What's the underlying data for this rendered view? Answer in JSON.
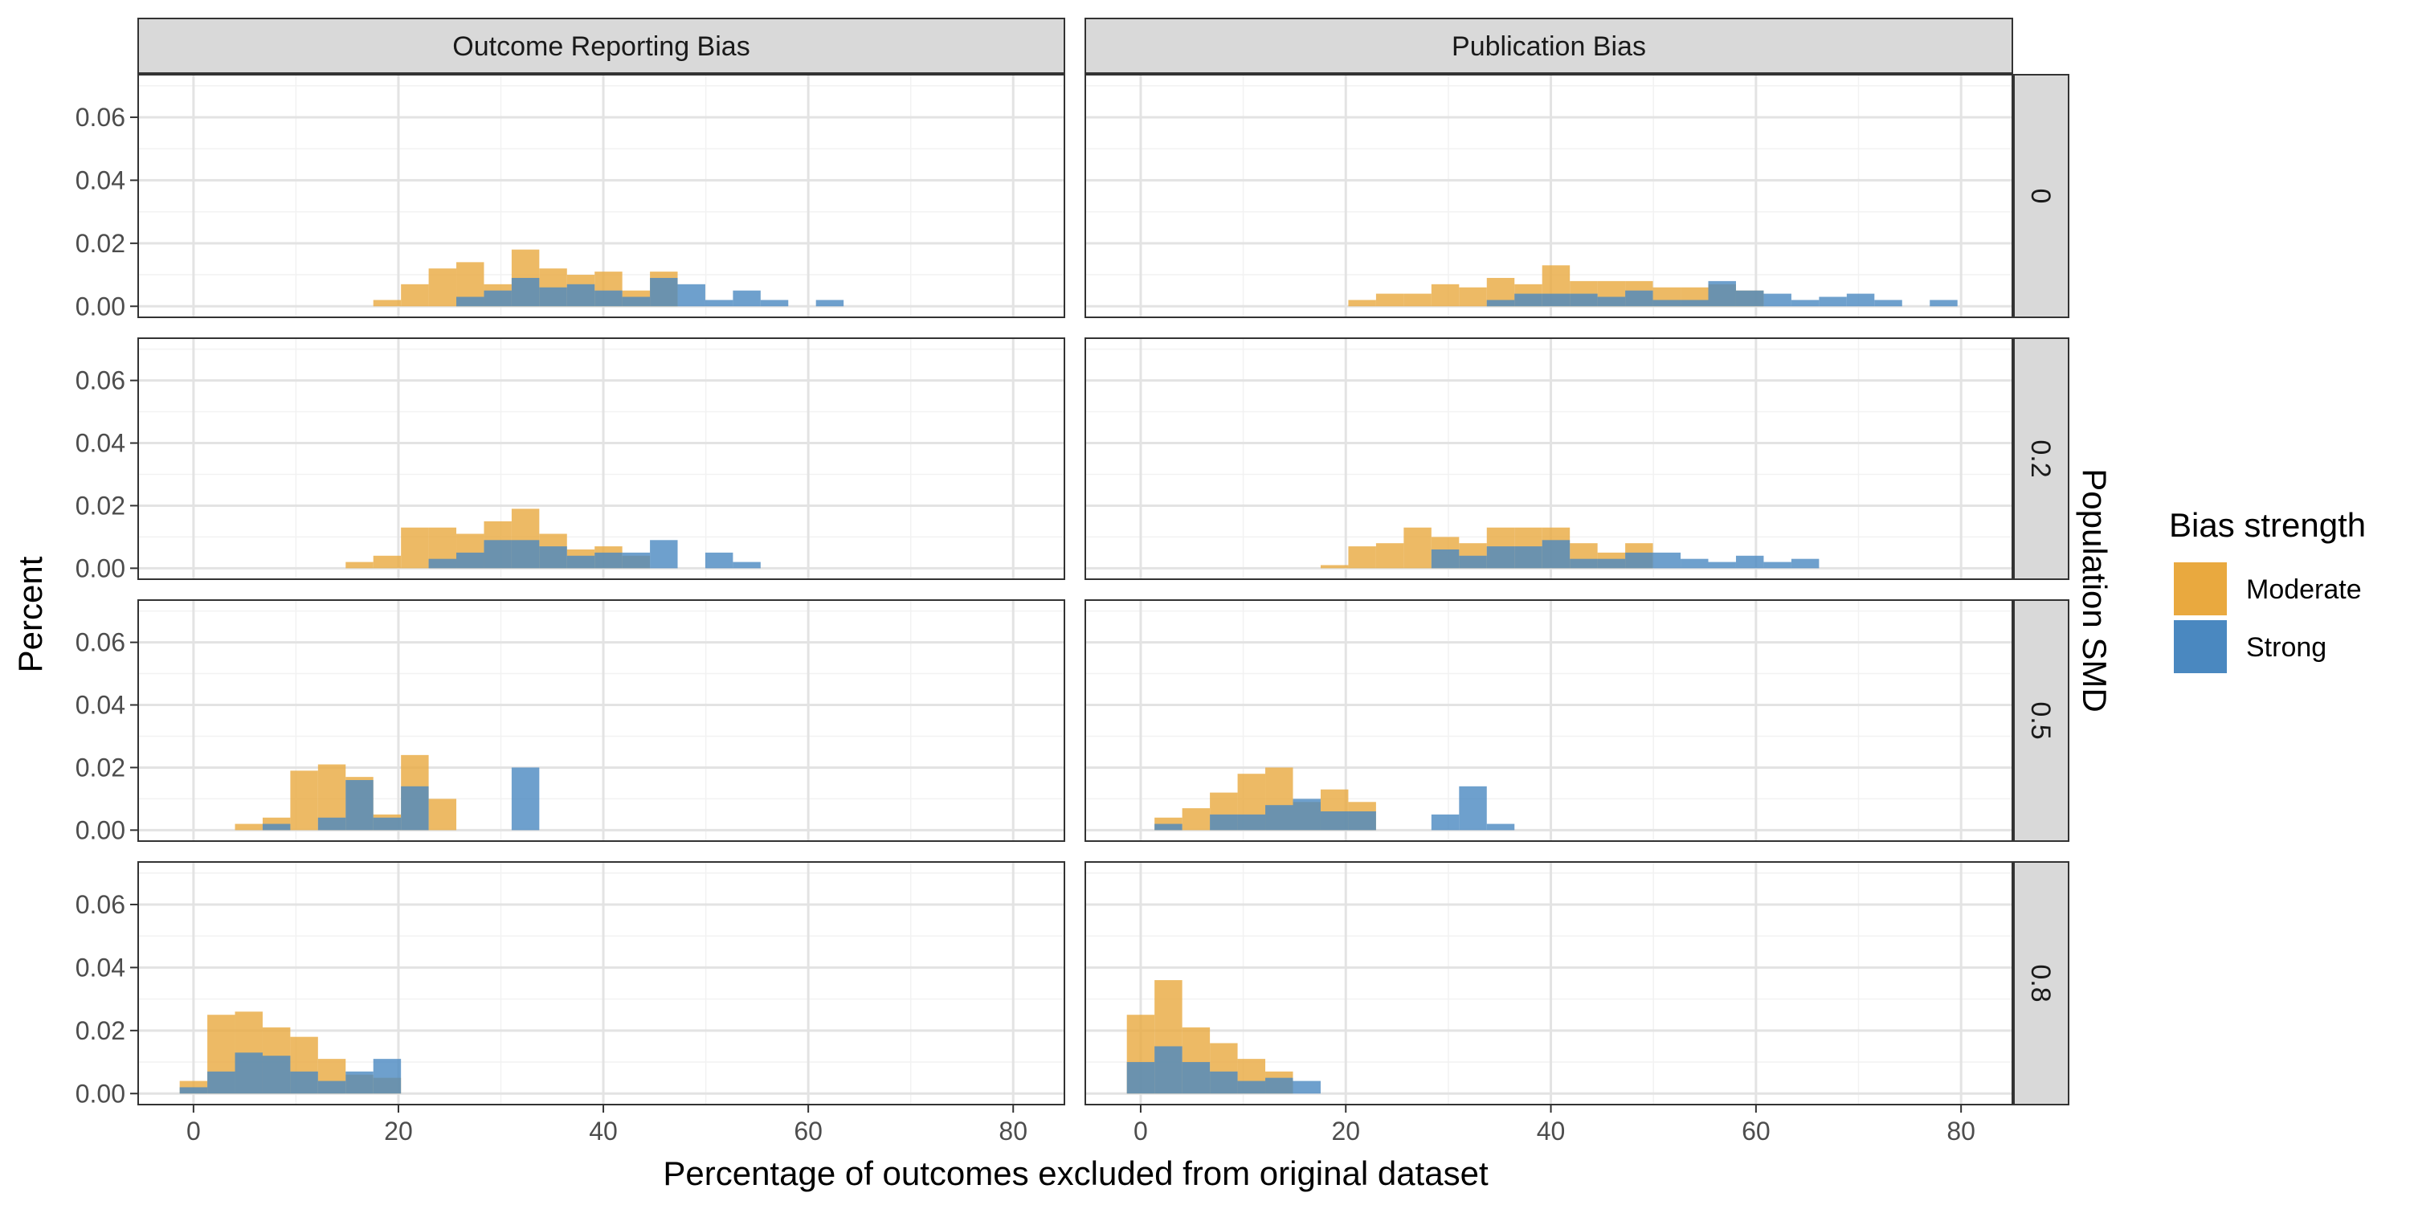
{
  "chart_data": {
    "type": "bar",
    "chart_subtype": "faceted-histogram",
    "xlabel": "Percentage of outcomes excluded from original dataset",
    "ylabel": "Percent",
    "row_facet_title": "Population SMD",
    "column_facets": [
      "Outcome Reporting Bias",
      "Publication Bias"
    ],
    "row_facets": [
      "0",
      "0.2",
      "0.5",
      "0.8"
    ],
    "xlim": [
      -5.4,
      85
    ],
    "ylim": [
      -0.0035,
      0.0735
    ],
    "x_ticks": [
      0,
      20,
      40,
      60,
      80
    ],
    "y_ticks": [
      0.0,
      0.02,
      0.04,
      0.06
    ],
    "y_tick_labels": [
      "0.00",
      "0.02",
      "0.04",
      "0.06"
    ],
    "bin_width": 2.7,
    "grid": true,
    "legend": {
      "title": "Bias strength",
      "position": "right",
      "entries": [
        {
          "name": "Moderate",
          "color": "#E9A93F"
        },
        {
          "name": "Strong",
          "color": "#4A88C0"
        }
      ]
    },
    "panels": [
      {
        "column": "Outcome Reporting Bias",
        "row": "0",
        "series": [
          {
            "name": "Moderate",
            "bins": [
              [
                18.9,
                0.002
              ],
              [
                21.6,
                0.007
              ],
              [
                24.3,
                0.012
              ],
              [
                27.0,
                0.014
              ],
              [
                29.7,
                0.007
              ],
              [
                32.4,
                0.018
              ],
              [
                35.1,
                0.012
              ],
              [
                37.8,
                0.01
              ],
              [
                40.5,
                0.011
              ],
              [
                43.2,
                0.005
              ],
              [
                45.9,
                0.011
              ]
            ]
          },
          {
            "name": "Strong",
            "bins": [
              [
                27.0,
                0.003
              ],
              [
                29.7,
                0.005
              ],
              [
                32.4,
                0.009
              ],
              [
                35.1,
                0.006
              ],
              [
                37.8,
                0.007
              ],
              [
                40.5,
                0.005
              ],
              [
                43.2,
                0.003
              ],
              [
                45.9,
                0.009
              ],
              [
                48.6,
                0.007
              ],
              [
                51.3,
                0.002
              ],
              [
                54.0,
                0.005
              ],
              [
                56.7,
                0.002
              ],
              [
                62.1,
                0.002
              ]
            ]
          }
        ]
      },
      {
        "column": "Publication Bias",
        "row": "0",
        "series": [
          {
            "name": "Moderate",
            "bins": [
              [
                21.6,
                0.002
              ],
              [
                24.3,
                0.004
              ],
              [
                27.0,
                0.004
              ],
              [
                29.7,
                0.007
              ],
              [
                32.4,
                0.006
              ],
              [
                35.1,
                0.009
              ],
              [
                37.8,
                0.007
              ],
              [
                40.5,
                0.013
              ],
              [
                43.2,
                0.008
              ],
              [
                45.9,
                0.008
              ],
              [
                48.6,
                0.008
              ],
              [
                51.3,
                0.006
              ],
              [
                54.0,
                0.006
              ],
              [
                56.7,
                0.007
              ],
              [
                59.4,
                0.005
              ]
            ]
          },
          {
            "name": "Strong",
            "bins": [
              [
                35.1,
                0.002
              ],
              [
                37.8,
                0.004
              ],
              [
                40.5,
                0.004
              ],
              [
                43.2,
                0.004
              ],
              [
                45.9,
                0.003
              ],
              [
                48.6,
                0.005
              ],
              [
                51.3,
                0.002
              ],
              [
                54.0,
                0.002
              ],
              [
                56.7,
                0.008
              ],
              [
                59.4,
                0.005
              ],
              [
                62.1,
                0.004
              ],
              [
                64.8,
                0.002
              ],
              [
                67.5,
                0.003
              ],
              [
                70.2,
                0.004
              ],
              [
                72.9,
                0.002
              ],
              [
                78.3,
                0.002
              ]
            ]
          }
        ]
      },
      {
        "column": "Outcome Reporting Bias",
        "row": "0.2",
        "series": [
          {
            "name": "Moderate",
            "bins": [
              [
                16.2,
                0.002
              ],
              [
                18.9,
                0.004
              ],
              [
                21.6,
                0.013
              ],
              [
                24.3,
                0.013
              ],
              [
                27.0,
                0.011
              ],
              [
                29.7,
                0.015
              ],
              [
                32.4,
                0.019
              ],
              [
                35.1,
                0.011
              ],
              [
                37.8,
                0.006
              ],
              [
                40.5,
                0.007
              ],
              [
                43.2,
                0.004
              ]
            ]
          },
          {
            "name": "Strong",
            "bins": [
              [
                24.3,
                0.003
              ],
              [
                27.0,
                0.005
              ],
              [
                29.7,
                0.009
              ],
              [
                32.4,
                0.009
              ],
              [
                35.1,
                0.007
              ],
              [
                37.8,
                0.004
              ],
              [
                40.5,
                0.005
              ],
              [
                43.2,
                0.005
              ],
              [
                45.9,
                0.009
              ],
              [
                51.3,
                0.005
              ],
              [
                54.0,
                0.002
              ]
            ]
          }
        ]
      },
      {
        "column": "Publication Bias",
        "row": "0.2",
        "series": [
          {
            "name": "Moderate",
            "bins": [
              [
                18.9,
                0.001
              ],
              [
                21.6,
                0.007
              ],
              [
                24.3,
                0.008
              ],
              [
                27.0,
                0.013
              ],
              [
                29.7,
                0.01
              ],
              [
                32.4,
                0.008
              ],
              [
                35.1,
                0.013
              ],
              [
                37.8,
                0.013
              ],
              [
                40.5,
                0.013
              ],
              [
                43.2,
                0.008
              ],
              [
                45.9,
                0.005
              ],
              [
                48.6,
                0.008
              ]
            ]
          },
          {
            "name": "Strong",
            "bins": [
              [
                29.7,
                0.006
              ],
              [
                32.4,
                0.004
              ],
              [
                35.1,
                0.007
              ],
              [
                37.8,
                0.007
              ],
              [
                40.5,
                0.009
              ],
              [
                43.2,
                0.003
              ],
              [
                45.9,
                0.003
              ],
              [
                48.6,
                0.005
              ],
              [
                51.3,
                0.005
              ],
              [
                54.0,
                0.003
              ],
              [
                56.7,
                0.002
              ],
              [
                59.4,
                0.004
              ],
              [
                62.1,
                0.002
              ],
              [
                64.8,
                0.003
              ]
            ]
          }
        ]
      },
      {
        "column": "Outcome Reporting Bias",
        "row": "0.5",
        "series": [
          {
            "name": "Moderate",
            "bins": [
              [
                5.4,
                0.002
              ],
              [
                8.1,
                0.004
              ],
              [
                10.8,
                0.019
              ],
              [
                13.5,
                0.021
              ],
              [
                16.2,
                0.017
              ],
              [
                18.9,
                0.005
              ],
              [
                21.6,
                0.024
              ],
              [
                24.3,
                0.01
              ]
            ]
          },
          {
            "name": "Strong",
            "bins": [
              [
                8.1,
                0.002
              ],
              [
                13.5,
                0.004
              ],
              [
                16.2,
                0.016
              ],
              [
                18.9,
                0.004
              ],
              [
                21.6,
                0.014
              ],
              [
                32.4,
                0.02
              ]
            ]
          }
        ]
      },
      {
        "column": "Publication Bias",
        "row": "0.5",
        "series": [
          {
            "name": "Moderate",
            "bins": [
              [
                2.7,
                0.004
              ],
              [
                5.4,
                0.007
              ],
              [
                8.1,
                0.012
              ],
              [
                10.8,
                0.018
              ],
              [
                13.5,
                0.02
              ],
              [
                16.2,
                0.009
              ],
              [
                18.9,
                0.013
              ],
              [
                21.6,
                0.009
              ]
            ]
          },
          {
            "name": "Strong",
            "bins": [
              [
                2.7,
                0.002
              ],
              [
                8.1,
                0.005
              ],
              [
                10.8,
                0.005
              ],
              [
                13.5,
                0.008
              ],
              [
                16.2,
                0.01
              ],
              [
                18.9,
                0.006
              ],
              [
                21.6,
                0.006
              ],
              [
                29.7,
                0.005
              ],
              [
                32.4,
                0.014
              ],
              [
                35.1,
                0.002
              ]
            ]
          }
        ]
      },
      {
        "column": "Outcome Reporting Bias",
        "row": "0.8",
        "series": [
          {
            "name": "Moderate",
            "bins": [
              [
                0.0,
                0.004
              ],
              [
                2.7,
                0.025
              ],
              [
                5.4,
                0.026
              ],
              [
                8.1,
                0.021
              ],
              [
                10.8,
                0.018
              ],
              [
                13.5,
                0.011
              ],
              [
                16.2,
                0.006
              ],
              [
                18.9,
                0.005
              ]
            ]
          },
          {
            "name": "Strong",
            "bins": [
              [
                0.0,
                0.002
              ],
              [
                2.7,
                0.007
              ],
              [
                5.4,
                0.013
              ],
              [
                8.1,
                0.012
              ],
              [
                10.8,
                0.007
              ],
              [
                13.5,
                0.004
              ],
              [
                16.2,
                0.007
              ],
              [
                18.9,
                0.011
              ]
            ]
          }
        ]
      },
      {
        "column": "Publication Bias",
        "row": "0.8",
        "series": [
          {
            "name": "Moderate",
            "bins": [
              [
                0.0,
                0.025
              ],
              [
                2.7,
                0.036
              ],
              [
                5.4,
                0.021
              ],
              [
                8.1,
                0.016
              ],
              [
                10.8,
                0.011
              ],
              [
                13.5,
                0.007
              ]
            ]
          },
          {
            "name": "Strong",
            "bins": [
              [
                0.0,
                0.01
              ],
              [
                2.7,
                0.015
              ],
              [
                5.4,
                0.01
              ],
              [
                8.1,
                0.007
              ],
              [
                10.8,
                0.004
              ],
              [
                13.5,
                0.005
              ],
              [
                16.2,
                0.004
              ]
            ]
          }
        ]
      }
    ]
  }
}
